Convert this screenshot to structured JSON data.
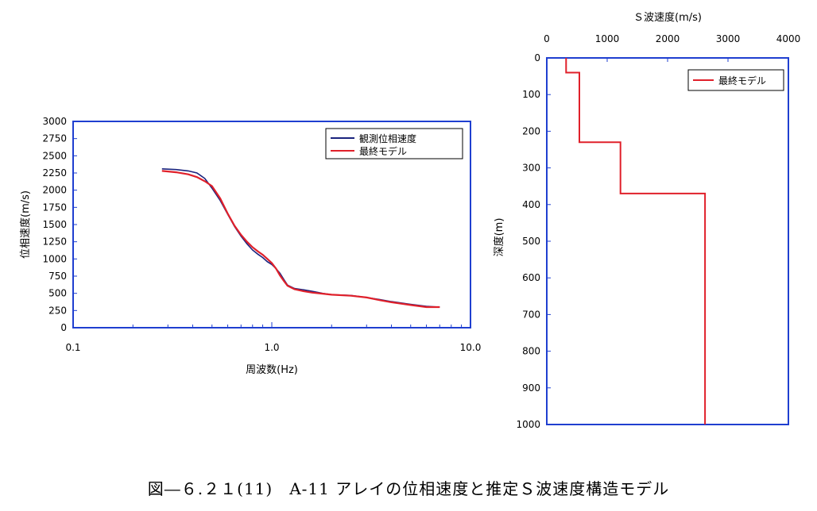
{
  "caption": "図―６.２１(11)　A-11 アレイの位相速度と推定Ｓ波速度構造モデル",
  "colors": {
    "frame": "#1f3fd0",
    "observed": "#1a237e",
    "model": "#e0202a"
  },
  "chart_data": [
    {
      "type": "line",
      "title": "",
      "xlabel": "周波数(Hz)",
      "ylabel": "位相速度(m/s)",
      "xscale": "log",
      "xlim": [
        0.1,
        10.0
      ],
      "ylim": [
        0,
        3000
      ],
      "xticks": [
        "0.1",
        "1.0",
        "10.0"
      ],
      "xtick_values": [
        0.1,
        1.0,
        10.0
      ],
      "yticks": [
        0,
        250,
        500,
        750,
        1000,
        1250,
        1500,
        1750,
        2000,
        2250,
        2500,
        2750,
        3000
      ],
      "grid": false,
      "legend": "top-right",
      "series": [
        {
          "name": "観測位相速度",
          "color": "#1a237e",
          "x": [
            0.28,
            0.33,
            0.38,
            0.42,
            0.46,
            0.5,
            0.55,
            0.6,
            0.65,
            0.7,
            0.75,
            0.8,
            0.85,
            0.9,
            0.95,
            1.0,
            1.05,
            1.1,
            1.15,
            1.2,
            1.3,
            1.45,
            1.6,
            1.8,
            2.0,
            2.5,
            3.0,
            3.5,
            4.0,
            5.0,
            6.0,
            7.0
          ],
          "y": [
            2310,
            2300,
            2280,
            2250,
            2170,
            2030,
            1850,
            1650,
            1470,
            1330,
            1220,
            1130,
            1070,
            1020,
            960,
            920,
            860,
            790,
            700,
            620,
            570,
            550,
            530,
            500,
            480,
            470,
            440,
            410,
            380,
            340,
            310,
            300
          ]
        },
        {
          "name": "最終モデル",
          "color": "#e0202a",
          "x": [
            0.28,
            0.33,
            0.38,
            0.42,
            0.46,
            0.5,
            0.55,
            0.6,
            0.65,
            0.7,
            0.75,
            0.8,
            0.85,
            0.9,
            0.95,
            1.0,
            1.05,
            1.1,
            1.15,
            1.2,
            1.3,
            1.45,
            1.6,
            1.8,
            2.0,
            2.5,
            3.0,
            3.5,
            4.0,
            5.0,
            6.0,
            7.0
          ],
          "y": [
            2280,
            2260,
            2230,
            2190,
            2130,
            2060,
            1880,
            1660,
            1480,
            1350,
            1250,
            1170,
            1110,
            1060,
            1000,
            940,
            860,
            760,
            680,
            610,
            560,
            530,
            510,
            495,
            480,
            465,
            440,
            400,
            370,
            330,
            300,
            300
          ]
        }
      ]
    },
    {
      "type": "line",
      "title": "Ｓ波速度(m/s)",
      "xlabel": "Ｓ波速度(m/s)",
      "ylabel": "深度(m)",
      "xlim": [
        0,
        4000
      ],
      "ylim": [
        0,
        1000
      ],
      "y_inverted": true,
      "x_axis_position": "top",
      "xticks": [
        0,
        1000,
        2000,
        3000,
        4000
      ],
      "yticks": [
        0,
        100,
        200,
        300,
        400,
        500,
        600,
        700,
        800,
        900,
        1000
      ],
      "grid": false,
      "legend": "top-right",
      "series": [
        {
          "name": "最終モデル",
          "color": "#e0202a",
          "x": [
            320,
            320,
            540,
            540,
            1220,
            1220,
            2620,
            2620
          ],
          "y": [
            0,
            40,
            40,
            230,
            230,
            370,
            370,
            1000
          ]
        }
      ]
    }
  ]
}
